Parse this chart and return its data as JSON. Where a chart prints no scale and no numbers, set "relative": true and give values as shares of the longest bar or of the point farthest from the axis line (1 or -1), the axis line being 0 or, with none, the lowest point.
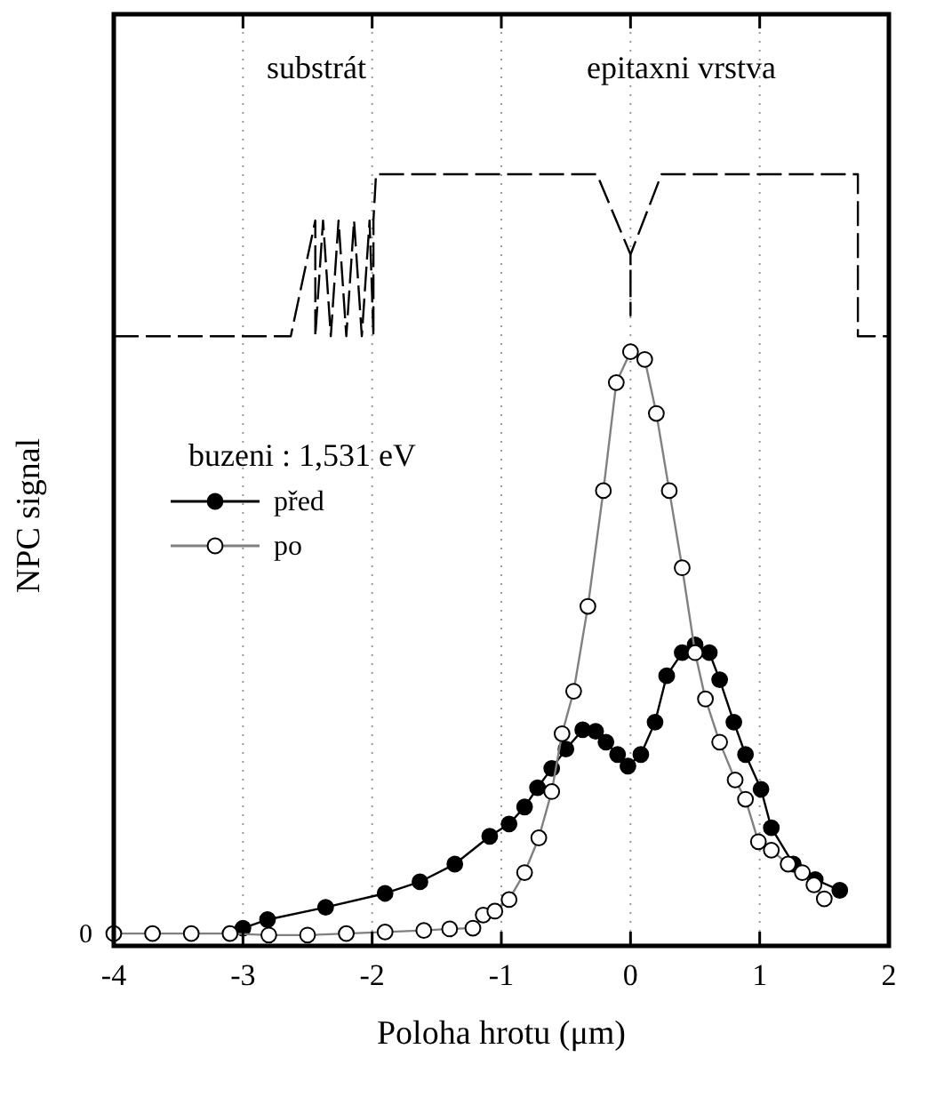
{
  "chart_data": {
    "type": "line",
    "relative": true,
    "xlabel": "Poloha hrotu (μm)",
    "ylabel": "NPC signal",
    "legend_title": "buzeni : 1,531 eV",
    "legend": "top left",
    "grid": "x",
    "marker": "circle",
    "xlim": [
      -4,
      2
    ],
    "xticks": [
      -4,
      -3,
      -2,
      -1,
      0,
      1,
      2
    ],
    "annotations": [
      "substrát",
      "epitaxni vrstva",
      "0"
    ],
    "series": [
      {
        "name": "před",
        "color": "#000000",
        "x": [
          -3,
          -2.81,
          -2.36,
          -1.9,
          -1.63,
          -1.36,
          -1.09,
          -0.94,
          -0.82,
          -0.72,
          -0.61,
          -0.5,
          -0.37,
          -0.27,
          -0.19,
          -0.1,
          -0.02,
          0.08,
          0.19,
          0.28,
          0.4,
          0.5,
          0.61,
          0.69,
          0.8,
          0.89,
          1.01,
          1.09,
          1.26,
          1.43,
          1.62
        ],
        "values": [
          0.023,
          0.034,
          0.05,
          0.068,
          0.083,
          0.106,
          0.142,
          0.158,
          0.18,
          0.205,
          0.23,
          0.255,
          0.28,
          0.278,
          0.264,
          0.248,
          0.233,
          0.248,
          0.29,
          0.35,
          0.38,
          0.39,
          0.38,
          0.345,
          0.29,
          0.248,
          0.203,
          0.153,
          0.106,
          0.086,
          0.072
        ]
      },
      {
        "name": "po",
        "color": "#808080",
        "marker": "circle-open",
        "x": [
          -4,
          -3.7,
          -3.4,
          -3.1,
          -2.8,
          -2.5,
          -2.2,
          -1.9,
          -1.6,
          -1.4,
          -1.22,
          -1.14,
          -1.05,
          -0.94,
          -0.82,
          -0.71,
          -0.61,
          -0.53,
          -0.44,
          -0.33,
          -0.21,
          -0.11,
          0,
          0.11,
          0.2,
          0.3,
          0.4,
          0.5,
          0.58,
          0.69,
          0.81,
          0.89,
          0.99,
          1.09,
          1.22,
          1.33,
          1.42,
          1.5
        ],
        "values": [
          0.016,
          0.016,
          0.016,
          0.016,
          0.014,
          0.014,
          0.016,
          0.018,
          0.02,
          0.022,
          0.023,
          0.04,
          0.045,
          0.06,
          0.095,
          0.14,
          0.2,
          0.275,
          0.33,
          0.44,
          0.59,
          0.73,
          0.77,
          0.76,
          0.69,
          0.59,
          0.49,
          0.38,
          0.32,
          0.264,
          0.215,
          0.19,
          0.135,
          0.124,
          0.106,
          0.095,
          0.079,
          0.061
        ]
      },
      {
        "color": "#000000",
        "marker": "none",
        "line_style": "dashed",
        "x": [
          -4,
          -2.63,
          -2.44,
          -2.44,
          -2.38,
          -2.32,
          -2.26,
          -2.2,
          -2.14,
          -2.08,
          -2.02,
          -1.99,
          -1.99,
          -1.97,
          -0.26,
          0,
          0,
          0,
          0.24,
          1.76,
          1.76,
          2
        ],
        "values": [
          0.79,
          0.79,
          0.94,
          0.79,
          0.94,
          0.79,
          0.94,
          0.79,
          0.94,
          0.79,
          0.94,
          0.79,
          0.94,
          1,
          1,
          0.896,
          0.817,
          0.896,
          1,
          1,
          0.79,
          0.79
        ]
      }
    ]
  }
}
